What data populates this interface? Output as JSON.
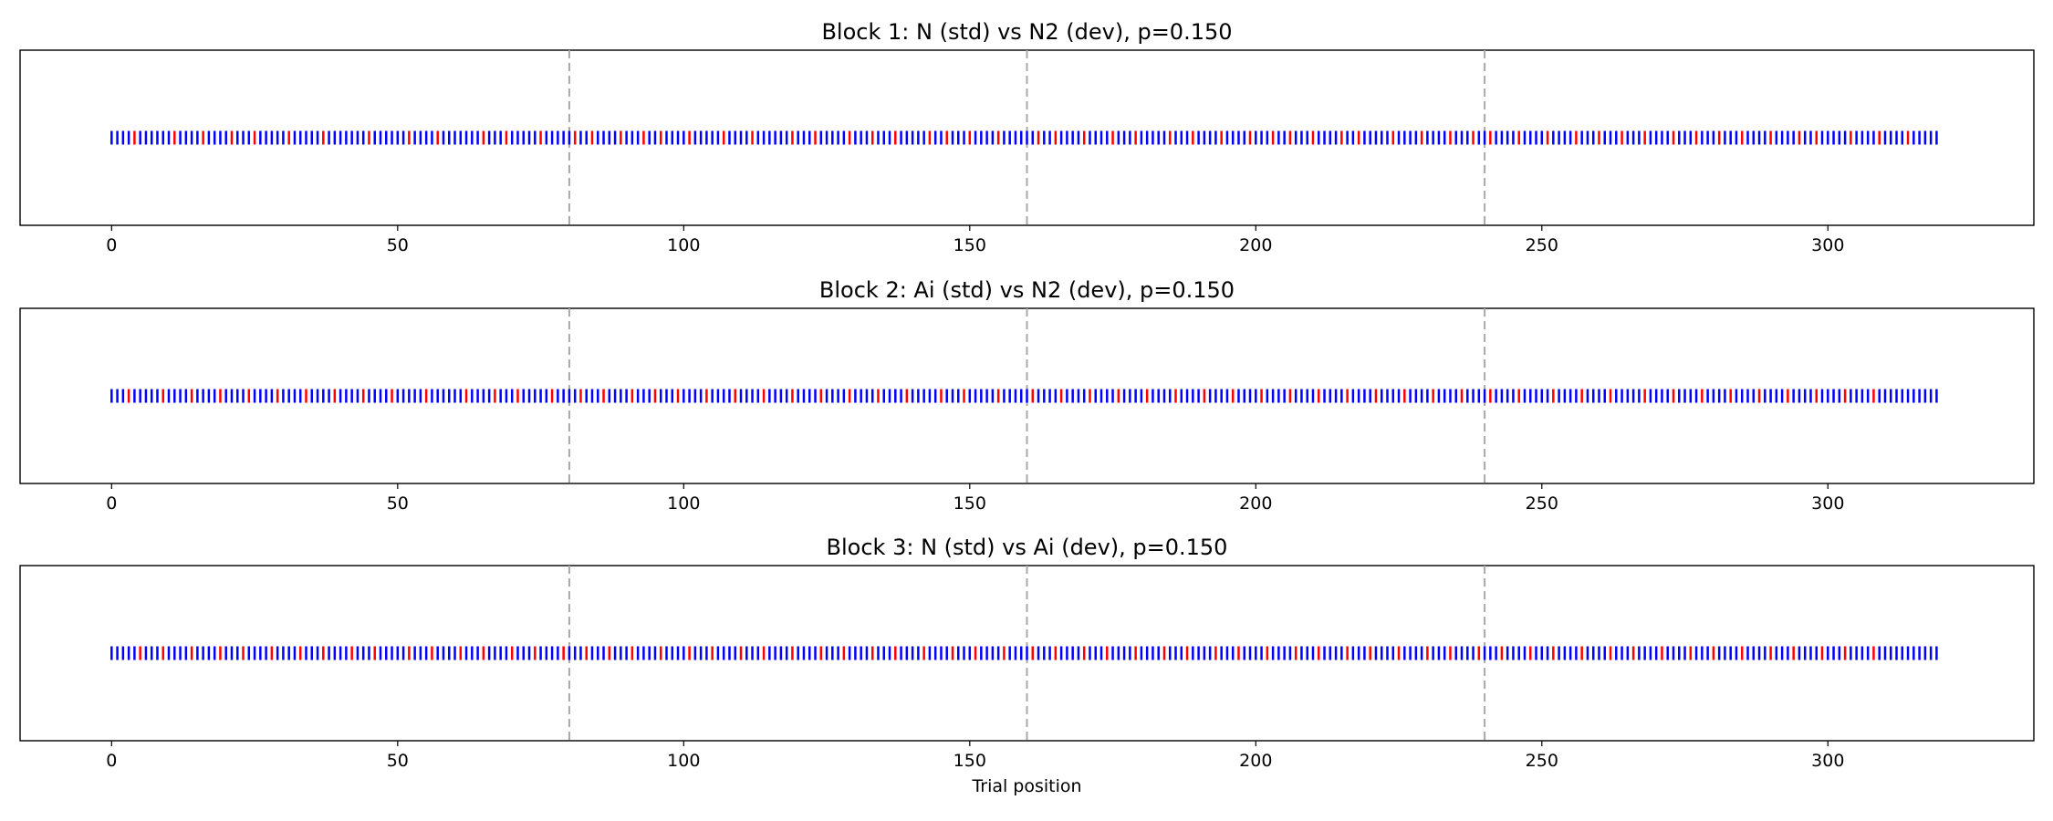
{
  "chart_data": [
    {
      "type": "event-raster",
      "title": "Block 1: N (std) vs N2 (dev), p=0.150",
      "xlabel": "",
      "xlim": [
        -16,
        336
      ],
      "xticks": [
        0,
        50,
        100,
        150,
        200,
        250,
        300
      ],
      "xtick_labels": [
        "0",
        "50",
        "100",
        "150",
        "200",
        "250",
        "300"
      ],
      "block_boundaries": [
        80,
        160,
        240
      ],
      "n_trials": 320,
      "deviant_positions": [
        4,
        11,
        16,
        21,
        25,
        31,
        37,
        45,
        52,
        57,
        65,
        69,
        75,
        81,
        84,
        89,
        93,
        96,
        101,
        107,
        112,
        119,
        123,
        129,
        133,
        137,
        143,
        146,
        150,
        155,
        162,
        165,
        170,
        175,
        179,
        185,
        189,
        194,
        199,
        203,
        206,
        210,
        215,
        218,
        224,
        229,
        234,
        238,
        241,
        246,
        251,
        256,
        260,
        264,
        268,
        273,
        277,
        281,
        285,
        290,
        295,
        298,
        304,
        309,
        314
      ],
      "standard_color": "#0000ff",
      "deviant_color": "#ff0000"
    },
    {
      "type": "event-raster",
      "title": "Block 2: Ai (std) vs N2 (dev), p=0.150",
      "xlabel": "",
      "xlim": [
        -16,
        336
      ],
      "xticks": [
        0,
        50,
        100,
        150,
        200,
        250,
        300
      ],
      "xtick_labels": [
        "0",
        "50",
        "100",
        "150",
        "200",
        "250",
        "300"
      ],
      "block_boundaries": [
        80,
        160,
        240
      ],
      "n_trials": 320,
      "deviant_positions": [
        3,
        9,
        14,
        19,
        24,
        29,
        34,
        39,
        44,
        49,
        55,
        62,
        67,
        71,
        77,
        82,
        86,
        91,
        95,
        99,
        104,
        109,
        114,
        119,
        124,
        129,
        134,
        139,
        145,
        149,
        155,
        161,
        166,
        171,
        176,
        181,
        186,
        191,
        196,
        201,
        206,
        211,
        216,
        221,
        226,
        231,
        236,
        241,
        246,
        252,
        257,
        262,
        268,
        273,
        278,
        283,
        288,
        293,
        298,
        303,
        308
      ],
      "standard_color": "#0000ff",
      "deviant_color": "#ff0000"
    },
    {
      "type": "event-raster",
      "title": "Block 3: N (std) vs Ai (dev), p=0.150",
      "xlabel": "Trial position",
      "xlim": [
        -16,
        336
      ],
      "xticks": [
        0,
        50,
        100,
        150,
        200,
        250,
        300
      ],
      "xtick_labels": [
        "0",
        "50",
        "100",
        "150",
        "200",
        "250",
        "300"
      ],
      "block_boundaries": [
        80,
        160,
        240
      ],
      "n_trials": 320,
      "deviant_positions": [
        5,
        9,
        14,
        19,
        23,
        28,
        33,
        37,
        42,
        46,
        52,
        56,
        61,
        65,
        70,
        74,
        79,
        83,
        87,
        91,
        96,
        101,
        105,
        110,
        114,
        119,
        124,
        128,
        133,
        137,
        142,
        147,
        151,
        156,
        161,
        165,
        170,
        174,
        179,
        184,
        188,
        193,
        197,
        202,
        207,
        211,
        216,
        220,
        225,
        230,
        234,
        239,
        243,
        248,
        252,
        257,
        262,
        266,
        271,
        276,
        280,
        285,
        290,
        294,
        299,
        303,
        308
      ],
      "standard_color": "#0000ff",
      "deviant_color": "#ff0000"
    }
  ]
}
